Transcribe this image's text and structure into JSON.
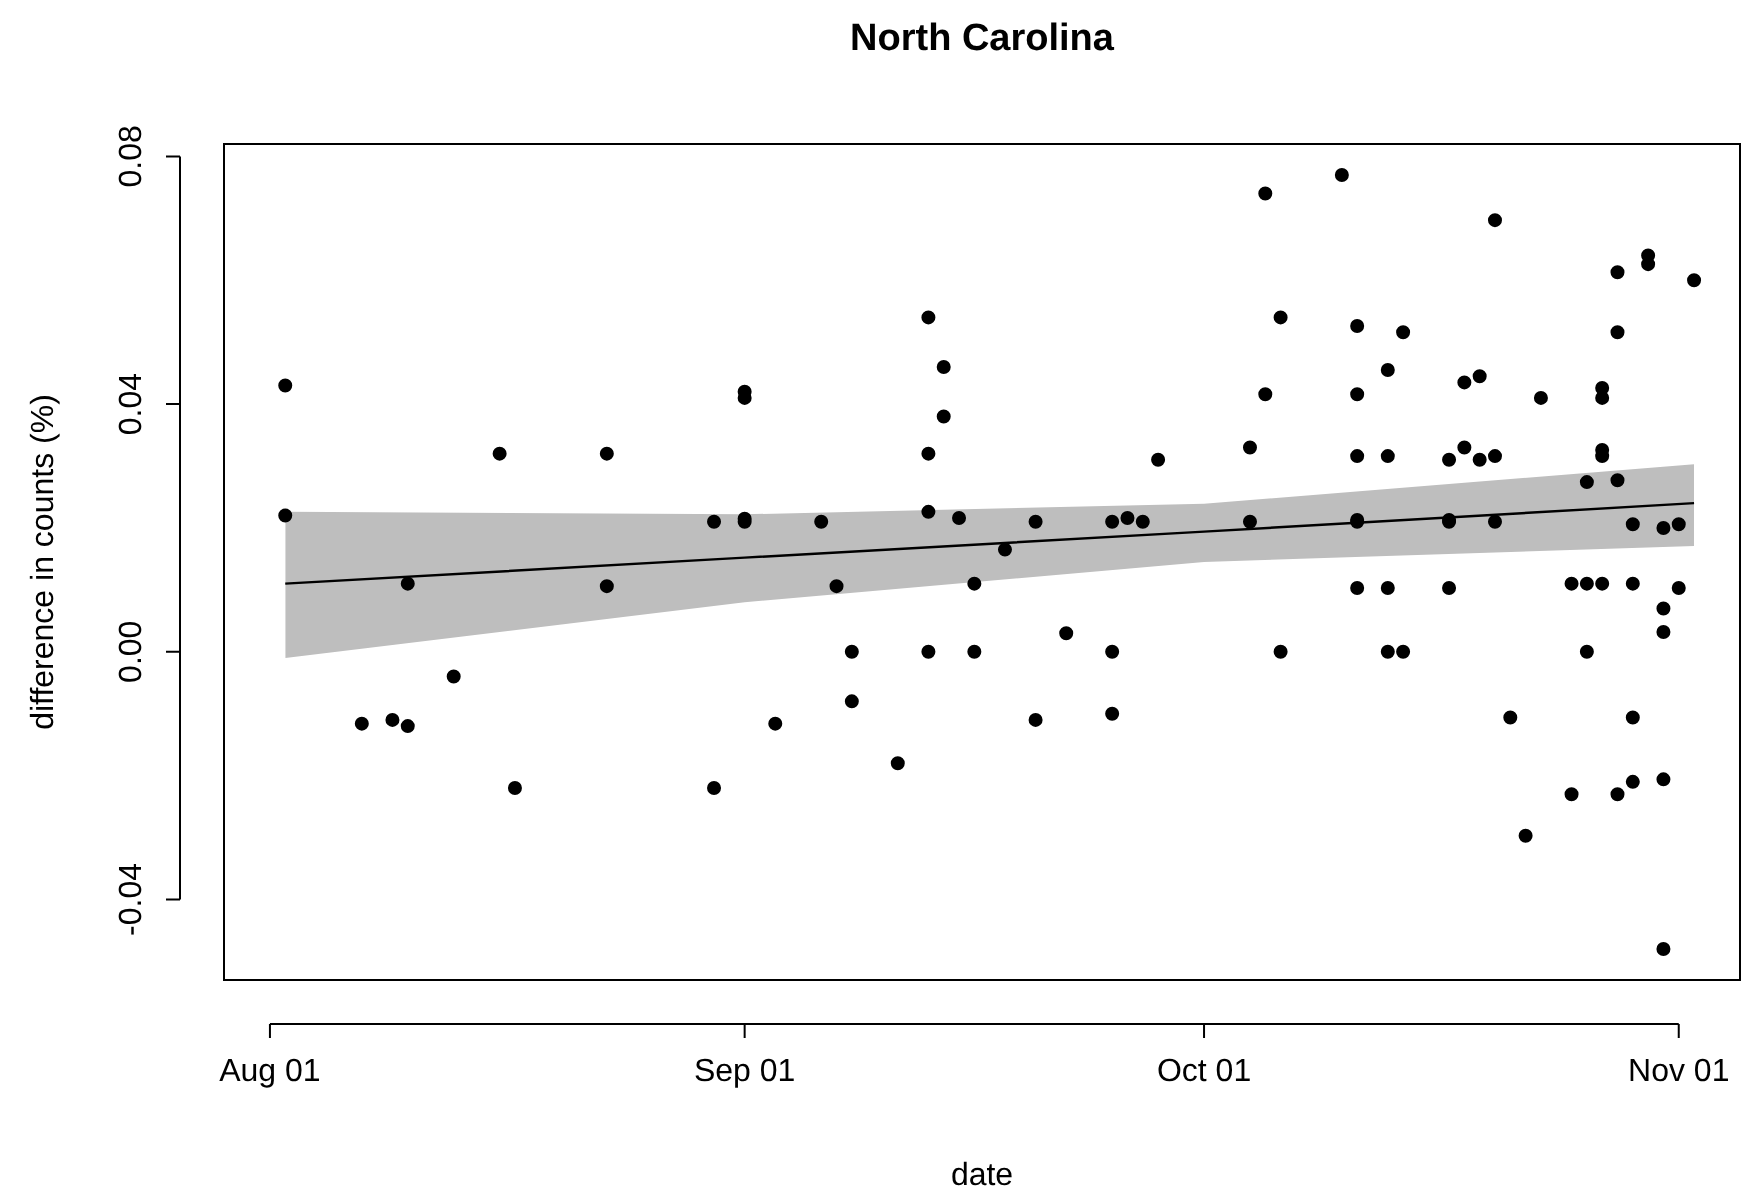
{
  "chart_data": {
    "type": "scatter",
    "title": "North Carolina",
    "xlabel": "date",
    "ylabel": "difference in counts (%)",
    "xlim": [
      "--07-29",
      "--11-05"
    ],
    "ylim": [
      -0.053,
      0.082
    ],
    "xticks": [
      {
        "value": "--08-01",
        "label": "Aug 01"
      },
      {
        "value": "--09-01",
        "label": "Sep 01"
      },
      {
        "value": "--10-01",
        "label": "Oct 01"
      },
      {
        "value": "--11-01",
        "label": "Nov 01"
      }
    ],
    "yticks": [
      {
        "value": -0.04,
        "label": "-0.04"
      },
      {
        "value": 0,
        "label": "0.00"
      },
      {
        "value": 0.04,
        "label": "0.04"
      },
      {
        "value": 0.08,
        "label": "0.08"
      }
    ],
    "series": [
      {
        "marker": "circle",
        "color": "#000000",
        "x": [
          "--08-02",
          "--08-02",
          "--08-07",
          "--08-09",
          "--08-10",
          "--08-10",
          "--08-13",
          "--08-16",
          "--08-17",
          "--08-23",
          "--08-23",
          "--08-30",
          "--08-30",
          "--09-01",
          "--09-01",
          "--09-01",
          "--09-01",
          "--09-03",
          "--09-06",
          "--09-07",
          "--09-08",
          "--09-08",
          "--09-11",
          "--09-13",
          "--09-13",
          "--09-13",
          "--09-13",
          "--09-14",
          "--09-14",
          "--09-15",
          "--09-16",
          "--09-16",
          "--09-18",
          "--09-20",
          "--09-20",
          "--09-22",
          "--09-25",
          "--09-25",
          "--09-25",
          "--09-26",
          "--09-27",
          "--09-28",
          "--10-04",
          "--10-04",
          "--10-05",
          "--10-05",
          "--10-06",
          "--10-06",
          "--10-10",
          "--10-11",
          "--10-11",
          "--10-11",
          "--10-11",
          "--10-11",
          "--10-11",
          "--10-13",
          "--10-13",
          "--10-13",
          "--10-13",
          "--10-14",
          "--10-14",
          "--10-17",
          "--10-17",
          "--10-17",
          "--10-17",
          "--10-18",
          "--10-18",
          "--10-19",
          "--10-19",
          "--10-20",
          "--10-20",
          "--10-20",
          "--10-21",
          "--10-22",
          "--10-23",
          "--10-25",
          "--10-25",
          "--10-26",
          "--10-26",
          "--10-26",
          "--10-27",
          "--10-27",
          "--10-27",
          "--10-27",
          "--10-27",
          "--10-28",
          "--10-28",
          "--10-28",
          "--10-28",
          "--10-29",
          "--10-29",
          "--10-29",
          "--10-29",
          "--10-30",
          "--10-30",
          "--10-31",
          "--10-31",
          "--10-31",
          "--10-31",
          "--10-31",
          "--11-01",
          "--11-01",
          "--11-02"
        ],
        "values": [
          0.043,
          0.022,
          -0.0116,
          -0.011,
          -0.012,
          0.011,
          -0.004,
          0.032,
          -0.022,
          0.032,
          0.0106,
          -0.022,
          0.021,
          0.042,
          0.041,
          0.0215,
          0.021,
          -0.0116,
          0.021,
          0.0106,
          -0.008,
          0,
          -0.018,
          0.054,
          0.032,
          0.0226,
          0,
          0.046,
          0.038,
          0.0216,
          0.011,
          0,
          0.0165,
          0.021,
          -0.011,
          0.003,
          0.021,
          0,
          -0.01,
          0.0216,
          0.021,
          0.031,
          0.033,
          0.021,
          0.074,
          0.0416,
          0.054,
          0,
          0.077,
          0.0526,
          0.0416,
          0.0316,
          0.0213,
          0.021,
          0.0103,
          0.0455,
          0.0316,
          0.0103,
          0,
          0.0516,
          0,
          0.031,
          0.0213,
          0.021,
          0.0103,
          0.0435,
          0.033,
          0.0445,
          0.031,
          0.0316,
          0.0697,
          0.021,
          -0.0106,
          -0.0297,
          0.041,
          0.011,
          -0.023,
          0.011,
          0.0274,
          0,
          0.011,
          0.0426,
          0.041,
          0.0326,
          0.0316,
          0.0613,
          0.0516,
          0.0277,
          -0.023,
          0.0206,
          0.011,
          -0.0106,
          -0.021,
          0.064,
          0.0626,
          0.02,
          0.007,
          0.0032,
          -0.0206,
          -0.048,
          0.0206,
          0.0103,
          0.06
        ]
      },
      {
        "type": "line",
        "marker": "none",
        "color": "#000000",
        "x": [
          "--08-02",
          "--09-01",
          "--10-01",
          "--11-02"
        ],
        "values": [
          0.011,
          0.0152,
          0.0194,
          0.024
        ],
        "lower": [
          -0.001,
          0.008,
          0.0145,
          0.0171
        ],
        "upper": [
          0.0226,
          0.0222,
          0.0239,
          0.0303
        ]
      }
    ]
  }
}
